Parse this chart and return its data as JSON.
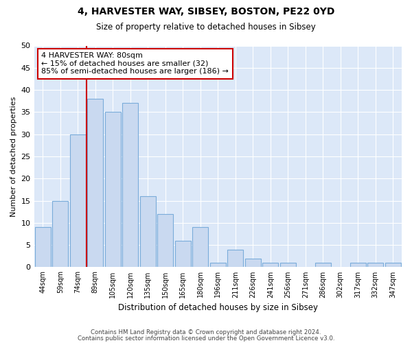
{
  "title1": "4, HARVESTER WAY, SIBSEY, BOSTON, PE22 0YD",
  "title2": "Size of property relative to detached houses in Sibsey",
  "xlabel": "Distribution of detached houses by size in Sibsey",
  "ylabel": "Number of detached properties",
  "categories": [
    "44sqm",
    "59sqm",
    "74sqm",
    "89sqm",
    "105sqm",
    "120sqm",
    "135sqm",
    "150sqm",
    "165sqm",
    "180sqm",
    "196sqm",
    "211sqm",
    "226sqm",
    "241sqm",
    "256sqm",
    "271sqm",
    "286sqm",
    "302sqm",
    "317sqm",
    "332sqm",
    "347sqm"
  ],
  "values": [
    9,
    15,
    30,
    38,
    35,
    37,
    16,
    12,
    6,
    9,
    1,
    4,
    2,
    1,
    1,
    0,
    1,
    0,
    1,
    1,
    1
  ],
  "bar_color": "#c9d9f0",
  "bar_edge_color": "#7aacda",
  "property_line_color": "#cc0000",
  "annotation_text": "4 HARVESTER WAY: 80sqm\n← 15% of detached houses are smaller (32)\n85% of semi-detached houses are larger (186) →",
  "annotation_box_color": "#ffffff",
  "annotation_edge_color": "#cc0000",
  "footer1": "Contains HM Land Registry data © Crown copyright and database right 2024.",
  "footer2": "Contains public sector information licensed under the Open Government Licence v3.0.",
  "fig_background": "#ffffff",
  "plot_background": "#dce8f8",
  "ylim": [
    0,
    50
  ],
  "yticks": [
    0,
    5,
    10,
    15,
    20,
    25,
    30,
    35,
    40,
    45,
    50
  ]
}
